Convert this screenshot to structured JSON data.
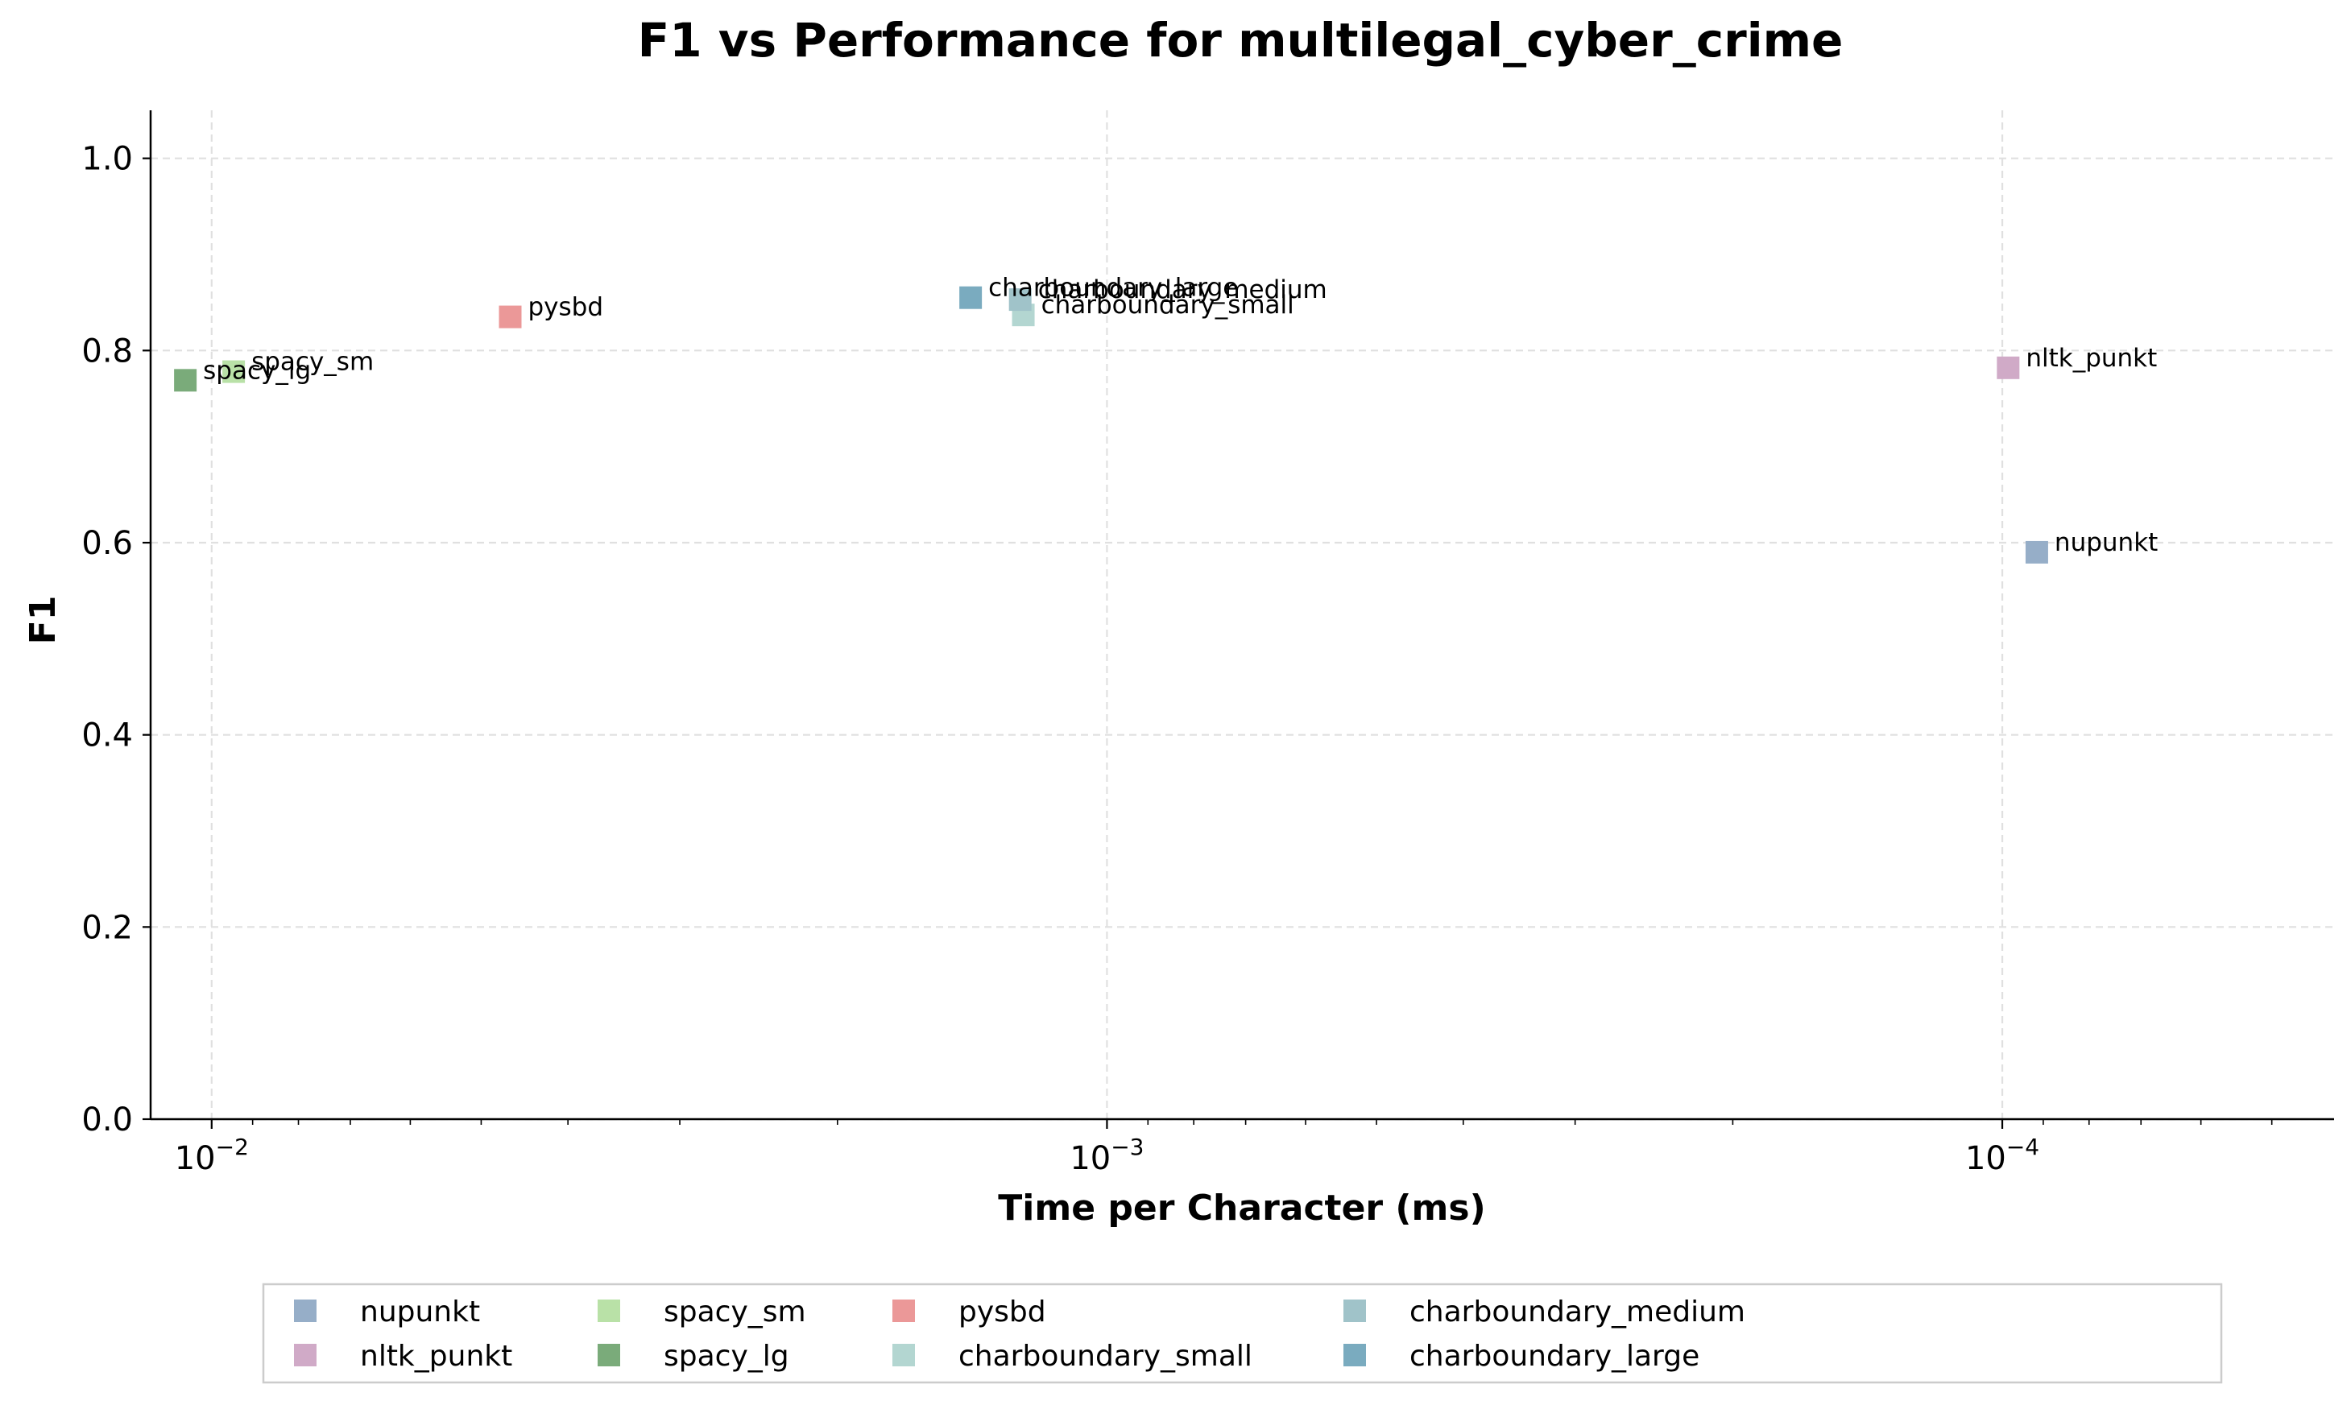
{
  "chart_data": {
    "type": "scatter",
    "title": "F1 vs Performance for multilegal_cyber_crime",
    "xlabel": "Time per Character (ms)",
    "ylabel": "F1",
    "xscale": "log",
    "x_inverted": true,
    "xlim": [
      0.0117,
      4.26e-05
    ],
    "ylim": [
      0.0,
      1.05
    ],
    "x_ticks": [
      {
        "value": 0.01,
        "base": "10",
        "exp": "−2"
      },
      {
        "value": 0.001,
        "base": "10",
        "exp": "−3"
      },
      {
        "value": 0.0001,
        "base": "10",
        "exp": "−4"
      }
    ],
    "y_ticks": [
      "0.0",
      "0.2",
      "0.4",
      "0.6",
      "0.8",
      "1.0"
    ],
    "grid": true,
    "legend_position": "below-center",
    "series": [
      {
        "name": "nupunkt",
        "color": "#96aec8",
        "x": 9.15e-05,
        "y": 0.59
      },
      {
        "name": "nltk_punkt",
        "color": "#d0aac7",
        "x": 9.85e-05,
        "y": 0.782
      },
      {
        "name": "spacy_sm",
        "color": "#b9e1a7",
        "x": 0.00945,
        "y": 0.778
      },
      {
        "name": "spacy_lg",
        "color": "#7aab7a",
        "x": 0.0107,
        "y": 0.769
      },
      {
        "name": "pysbd",
        "color": "#eb9898",
        "x": 0.00464,
        "y": 0.835
      },
      {
        "name": "charboundary_small",
        "color": "#b3d6d1",
        "x": 0.00124,
        "y": 0.837
      },
      {
        "name": "charboundary_medium",
        "color": "#a0c3c9",
        "x": 0.00125,
        "y": 0.853
      },
      {
        "name": "charboundary_large",
        "color": "#7aabbf",
        "x": 0.00142,
        "y": 0.855
      }
    ]
  }
}
